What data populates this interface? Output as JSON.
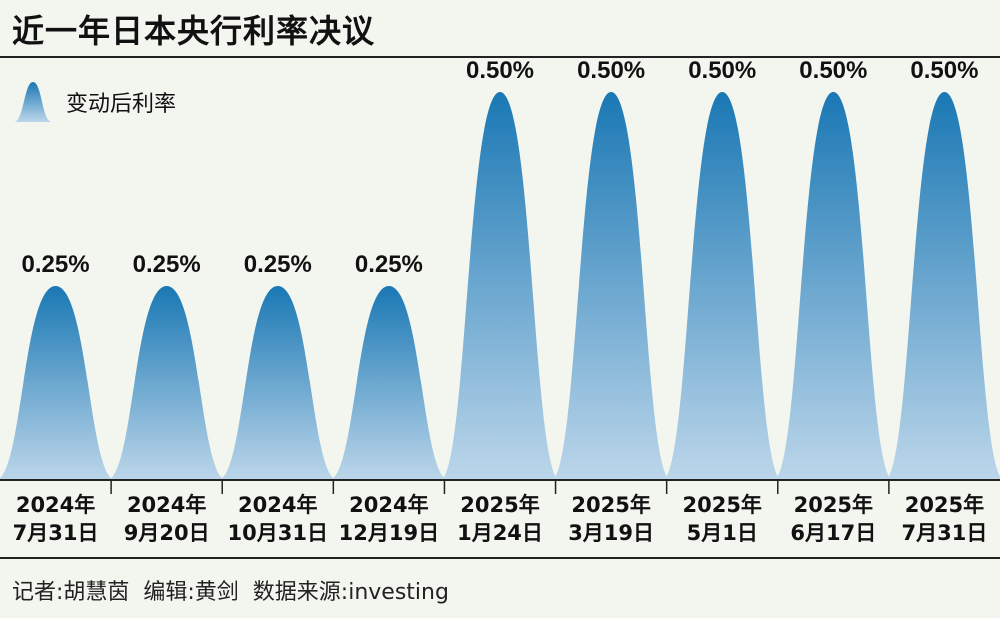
{
  "title": "近一年日本央行利率决议",
  "legend": {
    "label": "变动后利率"
  },
  "footer": "记者:胡慧茵  编辑:黄剑  数据来源:investing",
  "colors": {
    "peak_top": "#1a78b4",
    "peak_bottom": "#bcd6ea",
    "background": "#f3f5ef"
  },
  "chart_data": {
    "type": "bar",
    "title": "近一年日本央行利率决议",
    "series": [
      {
        "name": "变动后利率",
        "values": [
          0.25,
          0.25,
          0.25,
          0.25,
          0.5,
          0.5,
          0.5,
          0.5,
          0.5
        ]
      }
    ],
    "categories": [
      [
        "2024年",
        "7月31日"
      ],
      [
        "2024年",
        "9月20日"
      ],
      [
        "2024年",
        "10月31日"
      ],
      [
        "2024年",
        "12月19日"
      ],
      [
        "2025年",
        "1月24日"
      ],
      [
        "2025年",
        "3月19日"
      ],
      [
        "2025年",
        "5月1日"
      ],
      [
        "2025年",
        "6月17日"
      ],
      [
        "2025年",
        "7月31日"
      ]
    ],
    "value_labels": [
      "0.25%",
      "0.25%",
      "0.25%",
      "0.25%",
      "0.50%",
      "0.50%",
      "0.50%",
      "0.50%",
      "0.50%"
    ],
    "ylim": [
      0,
      0.5
    ],
    "grid": false,
    "legend_position": "top-left"
  }
}
